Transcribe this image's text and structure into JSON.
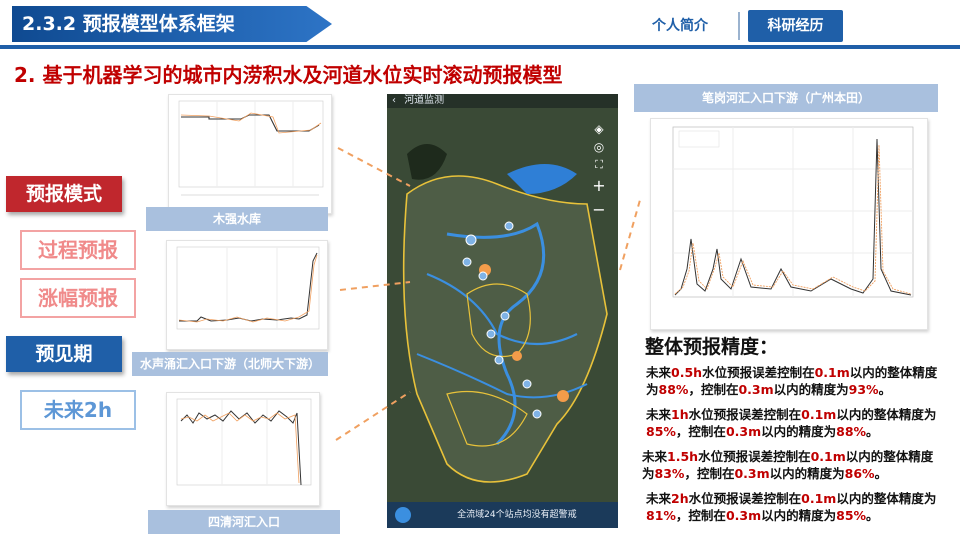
{
  "header": {
    "section_title": "2.3.2 预报模型体系框架",
    "nav": [
      "个人简介",
      "科研经历"
    ]
  },
  "subtitle": "2. 基于机器学习的城市内涝积水及河道水位实时滚动预报模型",
  "labels": {
    "forecast_mode": "预报模式",
    "process": "过程预报",
    "amplitude": "涨幅预报",
    "lead_time": "预见期",
    "future_2h": "未来2h"
  },
  "stations": {
    "s1": "木强水库",
    "s2": "水声涌汇入口下游（北师大下游）",
    "s3": "四清河汇入口",
    "s4": "笔岗河汇入口下游（广州本田）"
  },
  "map": {
    "header": "河道监测",
    "footer": "全流域24个站点均没有超警戒"
  },
  "accuracy": {
    "title": "整体预报精度：",
    "items": [
      {
        "prefix": "未来",
        "h": "0.5h",
        "a": "水位预报误差控制在",
        "v1": "0.1m",
        "b": "以内的整体精度为",
        "p1": "88%",
        "c": "，控制在",
        "v2": "0.3m",
        "d": "以内的精度为",
        "p2": "93%",
        "e": "。"
      },
      {
        "prefix": "未来",
        "h": "1h",
        "a": "水位预报误差控制在",
        "v1": "0.1m",
        "b": "以内的整体精度为",
        "p1": "85%",
        "c": "，控制在",
        "v2": "0.3m",
        "d": "以内的精度为",
        "p2": "88%",
        "e": "。"
      },
      {
        "prefix": "未来",
        "h": "1.5h",
        "a": "水位预报误差控制在",
        "v1": "0.1m",
        "b": "以内的整体精度为",
        "p1": "83%",
        "c": "，控制在",
        "v2": "0.3m",
        "d": "以内的精度为",
        "p2": "86%",
        "e": "。"
      },
      {
        "prefix": "未来",
        "h": "2h",
        "a": "水位预报误差控制在",
        "v1": "0.1m",
        "b": "以内的整体精度为",
        "p1": "81%",
        "c": "，控制在",
        "v2": "0.3m",
        "d": "以内的精度为",
        "p2": "85%",
        "e": "。"
      }
    ]
  },
  "colors": {
    "accent": "#1f5fa8",
    "red": "#c00000",
    "forecast": "#f0a060"
  }
}
